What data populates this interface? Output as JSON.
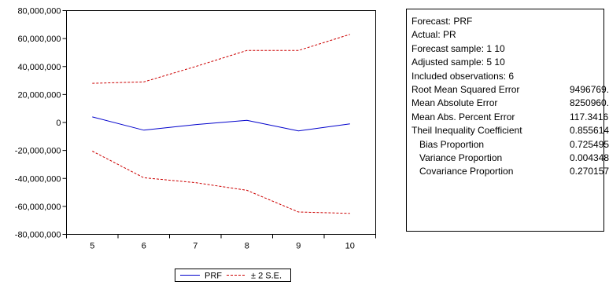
{
  "chart_data": {
    "type": "line",
    "x": [
      5,
      6,
      7,
      8,
      9,
      10
    ],
    "ylim": [
      -80000000,
      80000000
    ],
    "y_ticks": [
      "80,000,000",
      "60,000,000",
      "40,000,000",
      "20,000,000",
      "0",
      "-20,000,000",
      "-40,000,000",
      "-60,000,000",
      "-80,000,000"
    ],
    "series": [
      {
        "name": "PRF",
        "style": "solid",
        "color": "#0000cc",
        "values": [
          4000000,
          -5500000,
          -1500000,
          1500000,
          -6000000,
          -1000000
        ]
      },
      {
        "name": "± 2 S.E.",
        "style": "dashed",
        "color": "#cc0000",
        "values": [
          28000000,
          29000000,
          40000000,
          51500000,
          51500000,
          63000000
        ]
      },
      {
        "name": "",
        "style": "dashed",
        "color": "#cc0000",
        "values": [
          -20500000,
          -39500000,
          -43000000,
          -48500000,
          -64000000,
          -65000000
        ]
      }
    ],
    "legend": {
      "placement": "bottom",
      "entries": [
        "PRF",
        "± 2 S.E."
      ]
    },
    "grid": false
  },
  "stats": {
    "header_lines": [
      "Forecast: PRF",
      "Actual: PR",
      "Forecast sample: 1 10",
      "Adjusted sample: 5 10",
      "Included observations: 6"
    ],
    "rows": [
      {
        "label": "Root Mean Squared Error",
        "value": "9496769."
      },
      {
        "label": "Mean Absolute Error",
        "value": "8250960."
      },
      {
        "label": "Mean Abs. Percent Error",
        "value": "117.3416"
      },
      {
        "label": "Theil Inequality Coefficient",
        "value": "0.855614"
      },
      {
        "label": "Bias Proportion",
        "value": "0.725495",
        "indent": true
      },
      {
        "label": "Variance Proportion",
        "value": "0.004348",
        "indent": true
      },
      {
        "label": "Covariance Proportion",
        "value": "0.270157",
        "indent": true
      }
    ]
  }
}
